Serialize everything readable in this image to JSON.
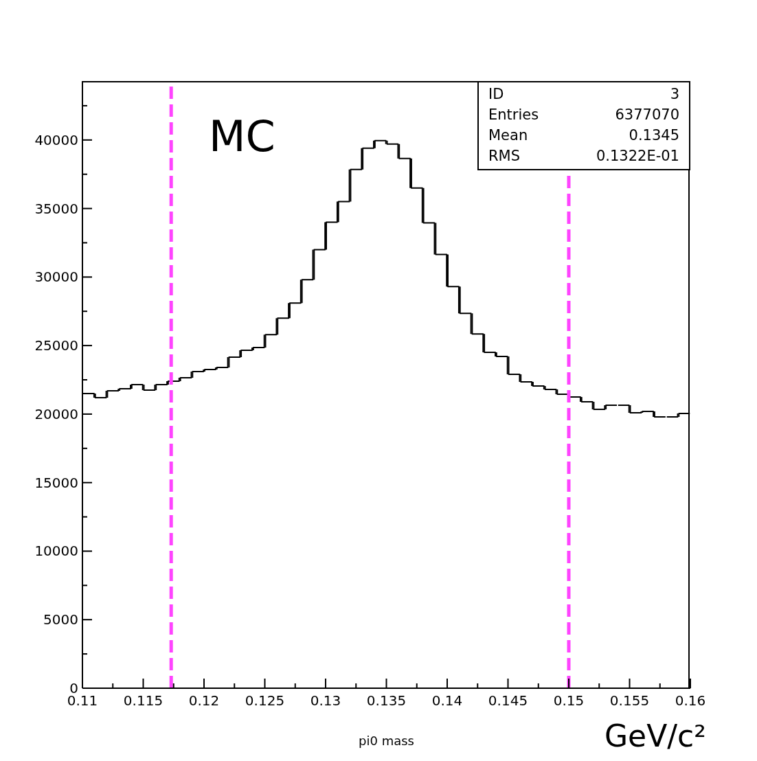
{
  "chart_data": {
    "type": "histogram",
    "xlabel": "pi0 mass",
    "bins": [
      0.11,
      0.111,
      0.112,
      0.113,
      0.114,
      0.115,
      0.116,
      0.117,
      0.118,
      0.119,
      0.12,
      0.121,
      0.122,
      0.123,
      0.124,
      0.125,
      0.126,
      0.127,
      0.128,
      0.129,
      0.13,
      0.131,
      0.132,
      0.133,
      0.134,
      0.135,
      0.136,
      0.137,
      0.138,
      0.139,
      0.14,
      0.141,
      0.142,
      0.143,
      0.144,
      0.145,
      0.146,
      0.147,
      0.148,
      0.149,
      0.15,
      0.151,
      0.152,
      0.153,
      0.154,
      0.155,
      0.156,
      0.157,
      0.158,
      0.159,
      0.16
    ],
    "values": [
      21500,
      21200,
      21700,
      21850,
      22150,
      21750,
      22150,
      22400,
      22650,
      23100,
      23250,
      23400,
      24150,
      24650,
      24850,
      25800,
      27000,
      28100,
      29800,
      32000,
      34000,
      35500,
      37850,
      39400,
      39950,
      39700,
      38650,
      36500,
      33950,
      31650,
      29300,
      27350,
      25850,
      24500,
      24200,
      22900,
      22350,
      22050,
      21800,
      21450,
      21250,
      20900,
      20350,
      20650,
      20650,
      20100,
      20200,
      19800,
      19800,
      20050
    ],
    "color": "#000000",
    "xlim": [
      0.11,
      0.16
    ],
    "xticks": [
      0.11,
      {
        "value": 0.1125,
        "label": null
      },
      0.115,
      {
        "value": 0.1175,
        "label": null
      },
      0.12,
      {
        "value": 0.1225,
        "label": null
      },
      0.125,
      {
        "value": 0.1275,
        "label": null
      },
      0.13,
      {
        "value": 0.1325,
        "label": null
      },
      0.135,
      {
        "value": 0.1375,
        "label": null
      },
      0.14,
      {
        "value": 0.1425,
        "label": null
      },
      0.145,
      {
        "value": 0.1475,
        "label": null
      },
      0.15,
      {
        "value": 0.1525,
        "label": null
      },
      0.155,
      {
        "value": 0.1575,
        "label": null
      },
      0.16
    ],
    "ylim": [
      0,
      44300
    ],
    "yticks": [
      0,
      {
        "value": 2500,
        "label": null
      },
      5000,
      {
        "value": 7500,
        "label": null
      },
      10000,
      {
        "value": 12500,
        "label": null
      },
      15000,
      {
        "value": 17500,
        "label": null
      },
      20000,
      {
        "value": 22500,
        "label": null
      },
      25000,
      {
        "value": 27500,
        "label": null
      },
      30000,
      {
        "value": 32500,
        "label": null
      },
      35000,
      {
        "value": 37500,
        "label": null
      },
      40000,
      {
        "value": 42500,
        "label": null
      }
    ],
    "ref_lines": [
      {
        "axis": "x",
        "value": 0.1173,
        "label": null,
        "color": "#ff44ff",
        "line_style": "dashed"
      },
      {
        "axis": "x",
        "value": 0.15,
        "label": null,
        "color": "#ff44ff",
        "line_style": "dashed"
      }
    ],
    "annotations": [
      "MC",
      "ID",
      "3",
      "Entries",
      "6377070",
      "Mean",
      "0.1345",
      "RMS",
      "0.1322E-01",
      "GeV/c²"
    ]
  }
}
